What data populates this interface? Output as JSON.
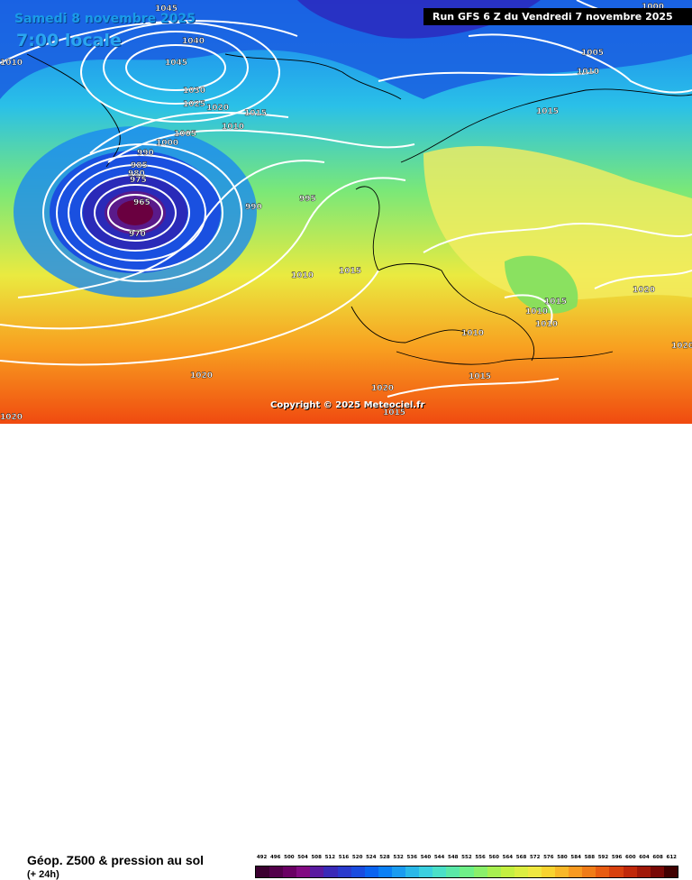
{
  "map": {
    "date_line": "Samedi 8 novembre 2025",
    "time_line": "7:00 locale",
    "run_info": "Run GFS 6 Z du Vendredi 7 novembre 2025",
    "copyright": "Copyright © 2025 Meteociel.fr",
    "title": "Géop. Z500 & pression au sol",
    "subtitle": "(+ 24h)",
    "isobar_labels": [
      "1045",
      "1040",
      "1045",
      "1035",
      "1030",
      "1025",
      "1020",
      "1015",
      "1010",
      "1005",
      "1000",
      "995",
      "990",
      "985",
      "980",
      "975",
      "970",
      "965",
      "990",
      "995",
      "1010",
      "1015",
      "1010",
      "1005",
      "1010",
      "1015",
      "1015",
      "1010",
      "1010",
      "1020",
      "1020",
      "1020",
      "1010",
      "1015",
      "1020",
      "1015",
      "1000",
      "1010",
      "1020"
    ],
    "legend": {
      "ticks": [
        "492",
        "496",
        "500",
        "504",
        "508",
        "512",
        "516",
        "520",
        "524",
        "528",
        "532",
        "536",
        "540",
        "544",
        "548",
        "552",
        "556",
        "560",
        "564",
        "568",
        "572",
        "576",
        "580",
        "584",
        "588",
        "592",
        "596",
        "600",
        "604",
        "608",
        "612"
      ],
      "colors": [
        "#3b0030",
        "#52004a",
        "#6a0064",
        "#820a82",
        "#5a1aa0",
        "#3a2ab8",
        "#2a3acd",
        "#1a4ce0",
        "#0a64f0",
        "#0a80f5",
        "#1a9cf0",
        "#2ab8e8",
        "#3ad0e0",
        "#4ae0c8",
        "#5ae8a8",
        "#6ef088",
        "#8af06a",
        "#a8f050",
        "#c4f040",
        "#dcee40",
        "#f0e840",
        "#f8d430",
        "#f8b828",
        "#f89a20",
        "#f07c18",
        "#e85c12",
        "#d8400e",
        "#c0280a",
        "#a01808",
        "#780806",
        "#400000"
      ]
    }
  }
}
